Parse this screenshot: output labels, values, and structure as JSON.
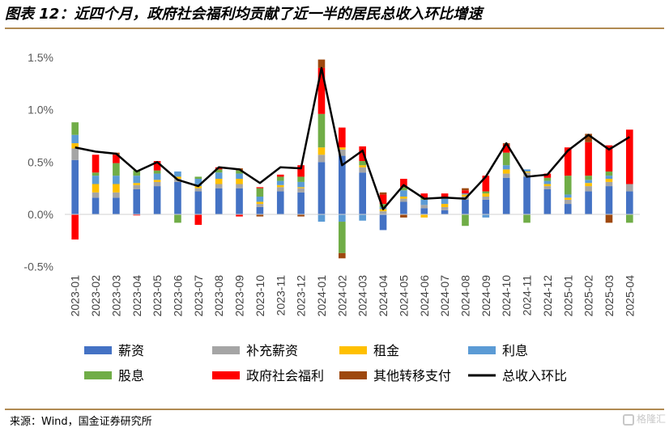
{
  "page": {
    "title": "图表 12：近四个月，政府社会福利均贡献了近一半的居民总收入环比增速",
    "source": "来源：Wind，国金证券研究所",
    "watermark": "格隆汇"
  },
  "chart_data": {
    "type": "bar",
    "stacked": true,
    "title": "",
    "xlabel": "",
    "ylabel": "",
    "ylim": [
      -0.5,
      1.6
    ],
    "yticks": [
      -0.5,
      0.0,
      0.5,
      1.0,
      1.5
    ],
    "ytick_labels": [
      "-0.5%",
      "0.0%",
      "0.5%",
      "1.0%",
      "1.5%"
    ],
    "grid": false,
    "legend_position": "bottom",
    "categories": [
      "2023-01",
      "2023-02",
      "2023-03",
      "2023-04",
      "2023-05",
      "2023-06",
      "2023-07",
      "2023-08",
      "2023-09",
      "2023-10",
      "2023-11",
      "2023-12",
      "2024-01",
      "2024-02",
      "2024-03",
      "2024-04",
      "2024-05",
      "2024-06",
      "2024-07",
      "2024-08",
      "2024-09",
      "2024-10",
      "2024-11",
      "2024-12",
      "2025-01",
      "2025-02",
      "2025-03",
      "2025-04"
    ],
    "series": [
      {
        "name": "薪资",
        "color": "#4472c4",
        "values": [
          0.52,
          0.16,
          0.16,
          0.24,
          0.27,
          0.31,
          0.22,
          0.25,
          0.25,
          0.07,
          0.22,
          0.21,
          0.5,
          0.56,
          0.4,
          -0.15,
          0.12,
          0.06,
          0.04,
          0.14,
          0.14,
          0.35,
          0.36,
          0.24,
          0.1,
          0.22,
          0.27,
          0.22
        ]
      },
      {
        "name": "补充薪资",
        "color": "#a5a5a5",
        "values": [
          0.11,
          0.05,
          0.05,
          0.04,
          0.04,
          0.03,
          0.03,
          0.04,
          0.04,
          0.03,
          0.04,
          0.04,
          0.07,
          0.06,
          0.05,
          0.03,
          0.03,
          0.03,
          0.03,
          0.03,
          0.03,
          0.04,
          0.04,
          0.03,
          0.04,
          0.05,
          0.04,
          0.07
        ]
      },
      {
        "name": "租金",
        "color": "#ffc000",
        "values": [
          0.05,
          0.08,
          0.08,
          0.02,
          0.02,
          0.02,
          0.02,
          0.05,
          0.05,
          0.02,
          0.02,
          0.01,
          0.07,
          0.02,
          0.02,
          0.02,
          0.02,
          -0.03,
          0.03,
          0.02,
          0.03,
          0.04,
          0.01,
          0.02,
          0.02,
          0.03,
          0.03,
          0.0
        ]
      },
      {
        "name": "利息",
        "color": "#5b9bd5",
        "values": [
          0.08,
          0.08,
          0.08,
          0.07,
          0.06,
          0.05,
          0.07,
          0.06,
          0.05,
          0.05,
          0.04,
          0.05,
          -0.07,
          -0.07,
          -0.06,
          0.02,
          0.06,
          0.05,
          0.05,
          0.01,
          -0.03,
          0.04,
          0.02,
          0.03,
          0.03,
          0.03,
          0.03,
          0.0
        ]
      },
      {
        "name": "股息",
        "color": "#70ad47",
        "values": [
          0.12,
          0.03,
          0.12,
          0.05,
          0.03,
          -0.08,
          0.02,
          0.03,
          0.03,
          0.08,
          0.04,
          0.05,
          0.32,
          -0.3,
          0.04,
          0.03,
          0.03,
          0.02,
          0.01,
          -0.11,
          0.02,
          0.12,
          -0.08,
          0.03,
          0.18,
          0.04,
          0.04,
          -0.08
        ]
      },
      {
        "name": "政府社会福利",
        "color": "#ff0000",
        "values": [
          -0.24,
          0.17,
          0.08,
          -0.01,
          0.09,
          0.0,
          -0.1,
          0.02,
          -0.02,
          0.01,
          0.02,
          0.11,
          0.44,
          0.19,
          0.14,
          0.09,
          0.08,
          0.04,
          0.04,
          0.03,
          0.15,
          0.08,
          0.0,
          0.04,
          0.27,
          0.32,
          0.25,
          0.52
        ]
      },
      {
        "name": "其他转移支付",
        "color": "#9e480e",
        "values": [
          0.0,
          0.0,
          0.02,
          0.0,
          0.0,
          0.0,
          0.0,
          0.0,
          0.02,
          -0.02,
          0.0,
          -0.02,
          0.08,
          -0.05,
          0.0,
          0.02,
          -0.03,
          0.0,
          0.0,
          0.02,
          0.0,
          0.01,
          0.0,
          0.0,
          0.0,
          0.08,
          -0.08,
          0.0
        ]
      }
    ],
    "line": {
      "name": "总收入环比",
      "color": "#000000",
      "values": [
        0.64,
        0.6,
        0.58,
        0.41,
        0.5,
        0.33,
        0.27,
        0.45,
        0.43,
        0.3,
        0.45,
        0.44,
        1.4,
        0.47,
        0.61,
        0.05,
        0.28,
        0.15,
        0.16,
        0.15,
        0.36,
        0.68,
        0.36,
        0.38,
        0.61,
        0.76,
        0.62,
        0.74
      ]
    },
    "legend_order": [
      "薪资",
      "补充薪资",
      "租金",
      "利息",
      "股息",
      "政府社会福利",
      "其他转移支付",
      "总收入环比"
    ]
  }
}
